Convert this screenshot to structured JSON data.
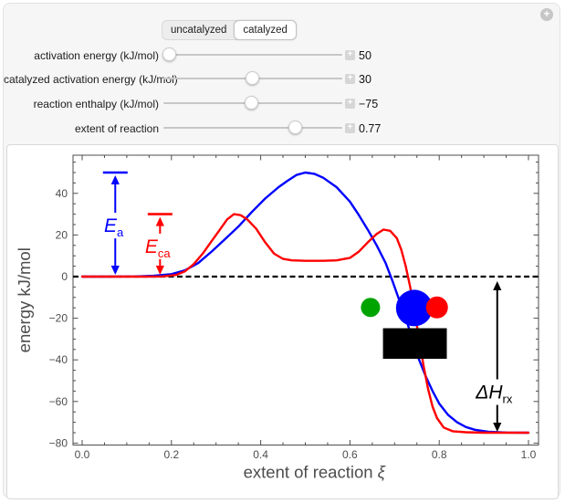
{
  "window": {
    "menu_icon": "+"
  },
  "tabs": {
    "options": [
      "uncatalyzed",
      "catalyzed"
    ],
    "selected": "catalyzed"
  },
  "controls": [
    {
      "label": "activation energy (kJ/mol)",
      "value": "50",
      "fraction": 0.035
    },
    {
      "label": "catalyzed activation energy (kJ/mol)",
      "value": "30",
      "fraction": 0.495
    },
    {
      "label": "reaction enthalpy (kJ/mol)",
      "value": "−75",
      "fraction": 0.49
    },
    {
      "label": "extent of reaction",
      "value": "0.77",
      "fraction": 0.735
    }
  ],
  "chart_data": {
    "type": "line",
    "title": "",
    "xlabel": "extent of reaction",
    "xlabel_symbol": "ξ",
    "ylabel": "energy kJ/mol",
    "xlim": [
      -0.02,
      1.04
    ],
    "ylim": [
      -80.5,
      58.5
    ],
    "x_ticks": [
      0,
      0.2,
      0.4,
      0.6,
      0.8,
      1.0
    ],
    "x_minor_step": 0.05,
    "y_ticks": [
      -80,
      -60,
      -40,
      -20,
      0,
      20,
      40
    ],
    "y_minor_step": 5,
    "grid": false,
    "legend": "none",
    "frame_color": "#4d4d4d",
    "tick_label_color": "#4d4d4d",
    "baseline": {
      "y": 0,
      "style": "dashed",
      "color": "#000000"
    },
    "series": [
      {
        "name": "uncatalyzed",
        "color": "#0000ff",
        "points": [
          [
            0,
            0
          ],
          [
            0.06,
            0
          ],
          [
            0.12,
            0.1
          ],
          [
            0.16,
            0.4
          ],
          [
            0.2,
            1.2
          ],
          [
            0.23,
            3
          ],
          [
            0.26,
            6.5
          ],
          [
            0.29,
            12
          ],
          [
            0.32,
            18
          ],
          [
            0.35,
            24
          ],
          [
            0.38,
            31
          ],
          [
            0.41,
            37.5
          ],
          [
            0.44,
            43
          ],
          [
            0.46,
            46
          ],
          [
            0.48,
            48.8
          ],
          [
            0.5,
            50
          ],
          [
            0.52,
            49.4
          ],
          [
            0.54,
            47.5
          ],
          [
            0.57,
            43
          ],
          [
            0.6,
            36
          ],
          [
            0.62,
            29.5
          ],
          [
            0.64,
            22.5
          ],
          [
            0.66,
            15
          ],
          [
            0.68,
            6.5
          ],
          [
            0.695,
            -2
          ],
          [
            0.71,
            -11
          ],
          [
            0.725,
            -20
          ],
          [
            0.74,
            -30
          ],
          [
            0.755,
            -40
          ],
          [
            0.77,
            -48
          ],
          [
            0.785,
            -55
          ],
          [
            0.8,
            -61
          ],
          [
            0.82,
            -66.5
          ],
          [
            0.84,
            -70
          ],
          [
            0.86,
            -72.3
          ],
          [
            0.88,
            -73.6
          ],
          [
            0.91,
            -74.5
          ],
          [
            0.95,
            -74.9
          ],
          [
            1,
            -75
          ]
        ]
      },
      {
        "name": "catalyzed",
        "color": "#ff0000",
        "points": [
          [
            0,
            0
          ],
          [
            0.08,
            0
          ],
          [
            0.14,
            0
          ],
          [
            0.18,
            0.1
          ],
          [
            0.21,
            0.8
          ],
          [
            0.23,
            2.5
          ],
          [
            0.25,
            6
          ],
          [
            0.27,
            11
          ],
          [
            0.29,
            17
          ],
          [
            0.31,
            23
          ],
          [
            0.325,
            27.5
          ],
          [
            0.34,
            30
          ],
          [
            0.355,
            29.5
          ],
          [
            0.37,
            27.5
          ],
          [
            0.39,
            23
          ],
          [
            0.41,
            16.5
          ],
          [
            0.43,
            11
          ],
          [
            0.45,
            8.5
          ],
          [
            0.47,
            7.8
          ],
          [
            0.5,
            7.6
          ],
          [
            0.54,
            7.6
          ],
          [
            0.57,
            7.8
          ],
          [
            0.6,
            9
          ],
          [
            0.62,
            12
          ],
          [
            0.64,
            16.5
          ],
          [
            0.66,
            20.5
          ],
          [
            0.675,
            22.6
          ],
          [
            0.69,
            22
          ],
          [
            0.705,
            18.5
          ],
          [
            0.715,
            13
          ],
          [
            0.725,
            5
          ],
          [
            0.735,
            -5
          ],
          [
            0.745,
            -17
          ],
          [
            0.755,
            -30
          ],
          [
            0.765,
            -43
          ],
          [
            0.775,
            -54
          ],
          [
            0.785,
            -62.5
          ],
          [
            0.795,
            -68
          ],
          [
            0.81,
            -72.5
          ],
          [
            0.83,
            -74.3
          ],
          [
            0.86,
            -74.8
          ],
          [
            0.9,
            -75
          ],
          [
            1,
            -75
          ]
        ]
      }
    ],
    "annotations": [
      {
        "id": "activation-energy-arrow",
        "label": "E",
        "sub": "a",
        "color": "#0000ff",
        "x": 0.0742,
        "from": 0,
        "to": 50,
        "cap": true,
        "label_y": 24.5
      },
      {
        "id": "catalyzed-activation-energy-arrow",
        "label": "E",
        "sub": "ca",
        "color": "#ff0000",
        "x": 0.1745,
        "from": 0,
        "to": 30,
        "cap": true,
        "label_y": 14.5
      },
      {
        "id": "reaction-enthalpy-arrow",
        "label": "ΔH",
        "sub": "rx",
        "color": "#000000",
        "x": 0.93,
        "from": 0,
        "to": -75,
        "cap": false,
        "label_y": -55.5
      }
    ],
    "shapes": {
      "molecules": [
        {
          "name": "molecule-green",
          "color": "#00a400",
          "x": 0.646,
          "y": -14.8,
          "r": 10.5
        },
        {
          "name": "molecule-blue",
          "color": "#0000ff",
          "x": 0.744,
          "y": -15.1,
          "r": 20
        },
        {
          "name": "molecule-red",
          "color": "#ff0000",
          "x": 0.795,
          "y": -14.8,
          "r": 12
        }
      ],
      "catalyst_rect": {
        "name": "catalyst-surface",
        "color": "#000000",
        "x0": 0.674,
        "x1": 0.817,
        "y0": -24.8,
        "y1": -39.5
      }
    }
  }
}
